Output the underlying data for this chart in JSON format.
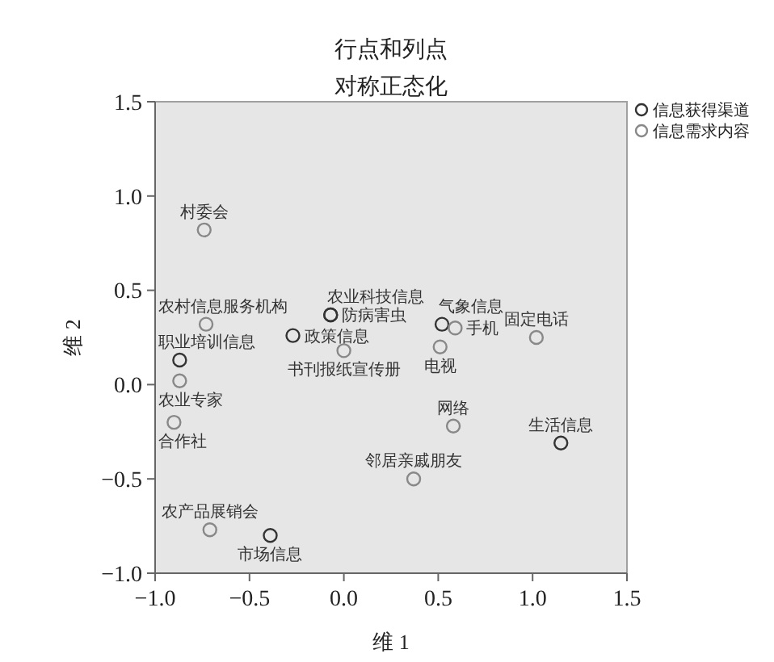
{
  "chart_data": {
    "type": "scatter",
    "title": "行点和列点",
    "subtitle": "对称正态化",
    "xlabel": "维 1",
    "ylabel": "维 2",
    "xlim": [
      -1,
      1.5
    ],
    "ylim": [
      -1,
      1.5
    ],
    "xticks": [
      {
        "value": -1,
        "label": "−1.0"
      },
      {
        "value": -0.5,
        "label": "−0.5"
      },
      {
        "value": 0,
        "label": "0.0"
      },
      {
        "value": 0.5,
        "label": "0.5"
      },
      {
        "value": 1,
        "label": "1.0"
      },
      {
        "value": 1.5,
        "label": "1.5"
      }
    ],
    "yticks": [
      {
        "value": -1,
        "label": "−1.0"
      },
      {
        "value": -0.5,
        "label": "−0.5"
      },
      {
        "value": 0,
        "label": "0.0"
      },
      {
        "value": 0.5,
        "label": "0.5"
      },
      {
        "value": 1,
        "label": "1.0"
      },
      {
        "value": 1.5,
        "label": "1.5"
      }
    ],
    "marker": "circle",
    "legend": "top right",
    "series": [
      {
        "name": "信息获得渠道",
        "color": "#333333",
        "x": [
          -0.07,
          -0.07,
          -0.27,
          0.52,
          -0.87,
          1.15,
          -0.39
        ],
        "values": [
          0.37,
          0.37,
          0.26,
          0.32,
          0.13,
          -0.31,
          -0.8
        ],
        "value_labels": [
          "农业科技信息",
          "防病害虫",
          "政策信息",
          "气象信息",
          "职业培训信息",
          "生活信息",
          "市场信息"
        ]
      },
      {
        "name": "信息需求内容",
        "color": "#888888",
        "x": [
          -0.74,
          -0.73,
          0.0,
          -0.87,
          -0.9,
          -0.71,
          0.37,
          0.58,
          0.59,
          0.51,
          1.02
        ],
        "values": [
          0.82,
          0.32,
          0.18,
          0.02,
          -0.2,
          -0.77,
          -0.5,
          -0.22,
          0.3,
          0.2,
          0.25
        ],
        "value_labels": [
          "村委会",
          "农村信息服务机构",
          "书刊报纸宣传册",
          "农业专家",
          "合作社",
          "农产品展销会",
          "邻居亲戚朋友",
          "网络",
          "手机",
          "电视",
          "固定电话"
        ]
      }
    ]
  }
}
